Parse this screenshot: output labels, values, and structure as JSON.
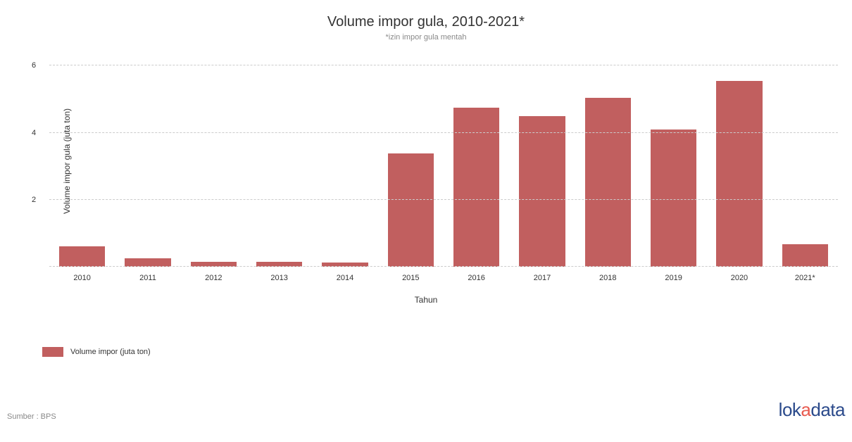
{
  "chart": {
    "type": "bar",
    "title": "Volume impor gula, 2010-2021*",
    "title_fontsize": 20,
    "subtitle": "*izin impor gula mentah",
    "subtitle_fontsize": 11,
    "subtitle_color": "#888888",
    "x_axis_title": "Tahun",
    "y_axis_title": "Volume impor gula (juta ton)",
    "categories": [
      "2010",
      "2011",
      "2012",
      "2013",
      "2014",
      "2015",
      "2016",
      "2017",
      "2018",
      "2019",
      "2020",
      "2021*"
    ],
    "values": [
      0.6,
      0.25,
      0.15,
      0.15,
      0.12,
      3.38,
      4.75,
      4.5,
      5.03,
      4.1,
      5.55,
      0.68
    ],
    "bar_color": "#c15f5f",
    "bar_width_ratio": 0.7,
    "background_color": "#ffffff",
    "grid_color": "#cccccc",
    "grid_dash": true,
    "ylim": [
      0,
      6.3
    ],
    "y_ticks": [
      0,
      2,
      4,
      6
    ],
    "y_tick_labels": [
      "0",
      "2",
      "4",
      "6"
    ],
    "tick_fontsize": 11,
    "axis_label_fontsize": 12,
    "text_color": "#333333"
  },
  "legend": {
    "items": [
      {
        "label": "Volume impor (juta ton)",
        "color": "#c15f5f"
      }
    ],
    "fontsize": 11
  },
  "footer": {
    "source_text": "Sumber : BPS",
    "source_color": "#888888",
    "logo": {
      "part1": "lok",
      "accent": "a",
      "part2": "data",
      "primary_color": "#2b4a8b",
      "accent_color": "#e85a4f",
      "fontsize": 26
    }
  }
}
